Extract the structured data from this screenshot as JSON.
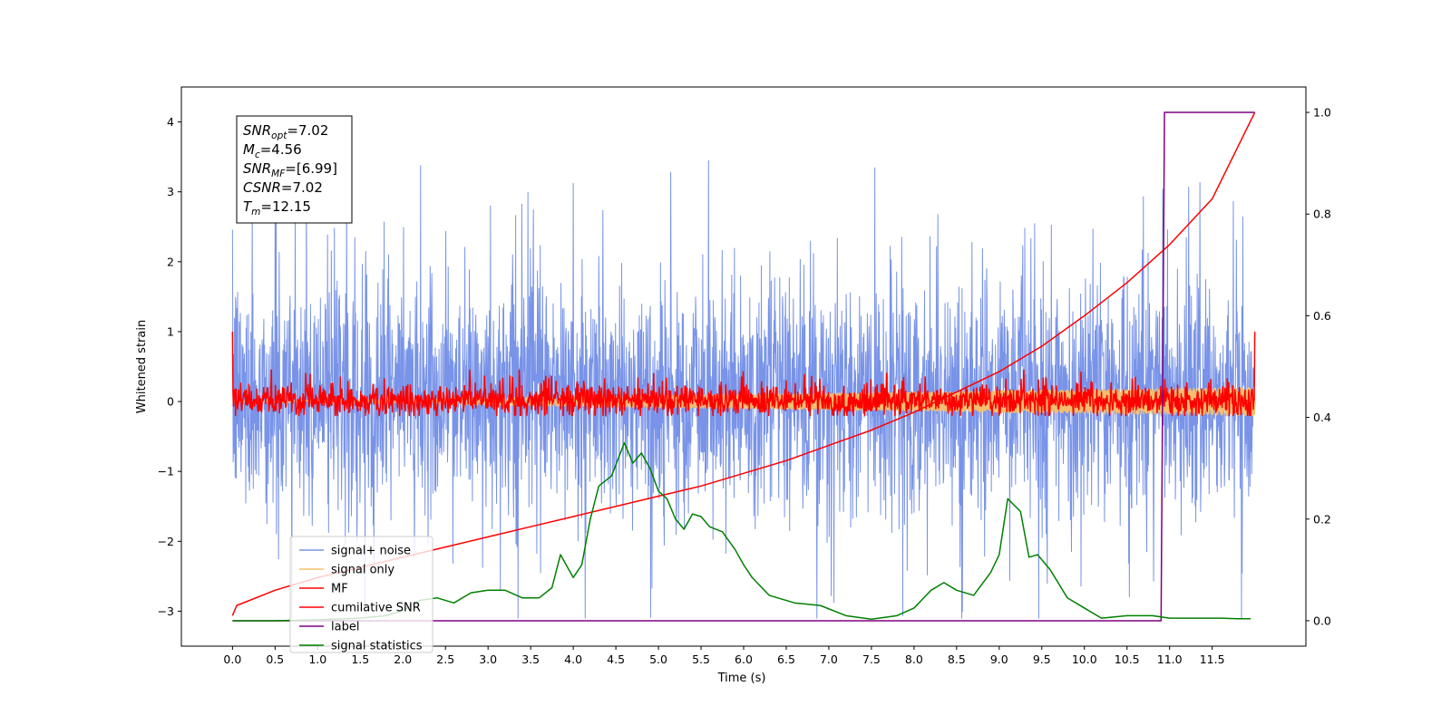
{
  "chart_data": {
    "type": "line",
    "title": "",
    "xlabel": "Time (s)",
    "ylabel": "Whitened strain",
    "xlim": [
      -0.6,
      12.6
    ],
    "ylim": [
      -3.5,
      4.5
    ],
    "y2lim": [
      -0.05,
      1.05
    ],
    "grid": false,
    "legend_position": "lower-left",
    "xticks": [
      0.0,
      0.5,
      1.0,
      1.5,
      2.0,
      2.5,
      3.0,
      3.5,
      4.0,
      4.5,
      5.0,
      5.5,
      6.0,
      6.5,
      7.0,
      7.5,
      8.0,
      8.5,
      9.0,
      9.5,
      10.0,
      10.5,
      11.0,
      11.5
    ],
    "xtick_labels": [
      "0.0",
      "0.5",
      "1.0",
      "1.5",
      "2.0",
      "2.5",
      "3.0",
      "3.5",
      "4.0",
      "4.5",
      "5.0",
      "5.5",
      "6.0",
      "6.5",
      "7.0",
      "7.5",
      "8.0",
      "8.5",
      "9.0",
      "9.5",
      "10.0",
      "10.5",
      "11.0",
      "11.5"
    ],
    "yticks": [
      -3,
      -2,
      -1,
      0,
      1,
      2,
      3,
      4
    ],
    "ytick_labels": [
      "−3",
      "−2",
      "−1",
      "0",
      "1",
      "2",
      "3",
      "4"
    ],
    "y2ticks": [
      0.0,
      0.2,
      0.4,
      0.6,
      0.8,
      1.0
    ],
    "y2tick_labels": [
      "0.0",
      "0.2",
      "0.4",
      "0.6",
      "0.8",
      "1.0"
    ],
    "annotation": {
      "lines": [
        {
          "label": "SNR",
          "sub": "opt",
          "value": "=7.02"
        },
        {
          "label": "M",
          "sub": "c",
          "value": "=4.56"
        },
        {
          "label": "SNR",
          "sub": "MF",
          "value": "=[6.99]"
        },
        {
          "label": "CSNR",
          "sub": "",
          "value": "=7.02"
        },
        {
          "label": "T",
          "sub": "m",
          "value": "=12.15"
        }
      ]
    },
    "series": [
      {
        "name": "signal+ noise",
        "color": "#7893e8",
        "axis": "left",
        "kind": "noise",
        "x_range": [
          0.0,
          12.0
        ],
        "center": 0.0,
        "typical_range": [
          -1.6,
          1.8
        ],
        "peak_max": 4.15,
        "peak_min": -3.1
      },
      {
        "name": "signal only",
        "color": "#f5be6e",
        "axis": "left",
        "kind": "chirp",
        "x_range": [
          0.0,
          12.0
        ],
        "amplitude_start": 0.0,
        "amplitude_end": 0.2
      },
      {
        "name": "MF",
        "color": "#ff0000",
        "axis": "left",
        "kind": "noise",
        "x_range": [
          0.0,
          12.0
        ],
        "center": 0.0,
        "typical_range": [
          -0.2,
          0.25
        ],
        "peak_max": 0.45,
        "peak_min": -0.2,
        "edge_values": [
          1.0,
          1.0
        ]
      },
      {
        "name": "cumilative SNR",
        "color": "#ff0000",
        "axis": "right",
        "x": [
          0.0,
          0.05,
          0.5,
          1.0,
          1.5,
          2.0,
          2.5,
          3.0,
          3.5,
          4.0,
          4.5,
          5.0,
          5.5,
          6.0,
          6.5,
          7.0,
          7.5,
          8.0,
          8.5,
          9.0,
          9.5,
          10.0,
          10.5,
          11.0,
          11.5,
          12.0
        ],
        "y": [
          0.01,
          0.03,
          0.06,
          0.085,
          0.105,
          0.125,
          0.145,
          0.165,
          0.185,
          0.205,
          0.225,
          0.245,
          0.265,
          0.29,
          0.315,
          0.345,
          0.375,
          0.41,
          0.45,
          0.49,
          0.54,
          0.6,
          0.665,
          0.74,
          0.83,
          1.0
        ]
      },
      {
        "name": "label",
        "color": "#800080",
        "axis": "right",
        "x": [
          0.0,
          10.9,
          10.94,
          12.0
        ],
        "y": [
          0.0,
          0.0,
          1.0,
          1.0
        ]
      },
      {
        "name": "signal statistics",
        "color": "#008000",
        "axis": "right",
        "x": [
          0.0,
          0.5,
          1.0,
          1.5,
          1.8,
          2.0,
          2.2,
          2.4,
          2.6,
          2.8,
          3.0,
          3.2,
          3.4,
          3.6,
          3.75,
          3.85,
          4.0,
          4.1,
          4.2,
          4.3,
          4.45,
          4.6,
          4.7,
          4.8,
          4.9,
          5.0,
          5.1,
          5.2,
          5.3,
          5.4,
          5.5,
          5.6,
          5.75,
          5.9,
          6.0,
          6.1,
          6.3,
          6.6,
          6.9,
          7.2,
          7.5,
          7.8,
          8.0,
          8.2,
          8.35,
          8.5,
          8.7,
          8.9,
          9.0,
          9.1,
          9.25,
          9.35,
          9.45,
          9.6,
          9.8,
          10.0,
          10.2,
          10.5,
          10.8,
          11.0,
          11.3,
          11.6,
          11.8,
          11.95
        ],
        "y": [
          0.0,
          0.0,
          0.002,
          0.005,
          0.01,
          0.02,
          0.04,
          0.045,
          0.035,
          0.055,
          0.06,
          0.06,
          0.045,
          0.045,
          0.065,
          0.13,
          0.085,
          0.11,
          0.2,
          0.265,
          0.285,
          0.35,
          0.31,
          0.33,
          0.3,
          0.255,
          0.24,
          0.2,
          0.18,
          0.21,
          0.205,
          0.185,
          0.175,
          0.14,
          0.11,
          0.085,
          0.05,
          0.035,
          0.03,
          0.01,
          0.003,
          0.01,
          0.025,
          0.06,
          0.075,
          0.06,
          0.05,
          0.095,
          0.13,
          0.24,
          0.215,
          0.125,
          0.13,
          0.1,
          0.045,
          0.025,
          0.005,
          0.01,
          0.01,
          0.005,
          0.005,
          0.005,
          0.004,
          0.004
        ]
      }
    ]
  }
}
